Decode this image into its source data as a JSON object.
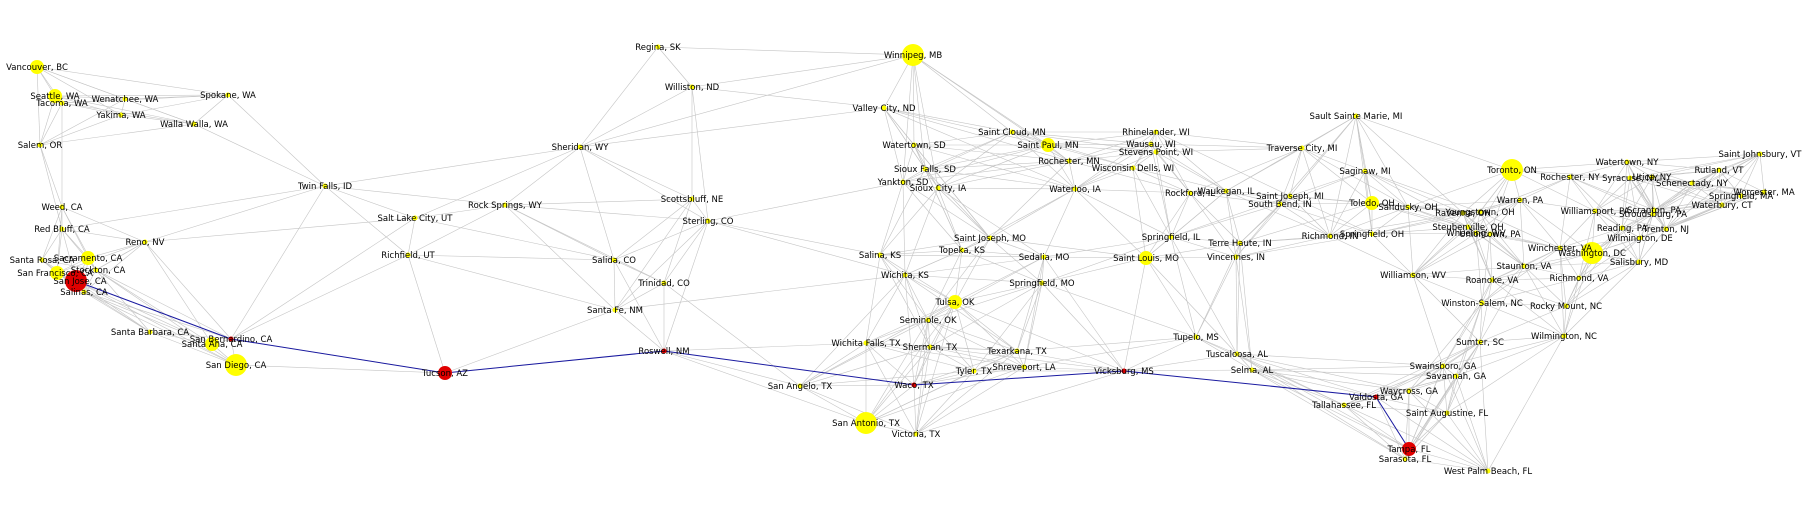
{
  "colors": {
    "node": "#ffff00",
    "path_node": "#e00000",
    "edge": "#c4c4c4",
    "path_edge": "#1a1aa0",
    "label": "#000000"
  },
  "nodes": [
    {
      "id": "vancouver",
      "label": "Vancouver, BC",
      "path": false,
      "size": "m"
    },
    {
      "id": "seattle",
      "label": "Seattle, WA",
      "path": false,
      "size": "m"
    },
    {
      "id": "tacoma",
      "label": "Tacoma, WA",
      "path": false,
      "size": "s"
    },
    {
      "id": "wenatchee",
      "label": "Wenatchee, WA",
      "path": false,
      "size": "s"
    },
    {
      "id": "spokane",
      "label": "Spokane, WA",
      "path": false,
      "size": "s"
    },
    {
      "id": "yakima",
      "label": "Yakima, WA",
      "path": false,
      "size": "s"
    },
    {
      "id": "wallawalla",
      "label": "Walla Walla, WA",
      "path": false,
      "size": "s"
    },
    {
      "id": "salem_or",
      "label": "Salem, OR",
      "path": false,
      "size": "s"
    },
    {
      "id": "twinfalls",
      "label": "Twin Falls, ID",
      "path": false,
      "size": "s"
    },
    {
      "id": "weed",
      "label": "Weed, CA",
      "path": false,
      "size": "s"
    },
    {
      "id": "redbluff",
      "label": "Red Bluff, CA",
      "path": false,
      "size": "s"
    },
    {
      "id": "reno",
      "label": "Reno, NV",
      "path": false,
      "size": "s"
    },
    {
      "id": "santarosa",
      "label": "Santa Rosa, CA",
      "path": false,
      "size": "s"
    },
    {
      "id": "sacramento",
      "label": "Sacramento, CA",
      "path": false,
      "size": "m"
    },
    {
      "id": "sanfrancisco",
      "label": "San Francisco, CA",
      "path": false,
      "size": "m"
    },
    {
      "id": "stockton",
      "label": "Stockton, CA",
      "path": false,
      "size": "s"
    },
    {
      "id": "sanjose",
      "label": "San Jose, CA",
      "path": true,
      "size": "l"
    },
    {
      "id": "salinas",
      "label": "Salinas, CA",
      "path": false,
      "size": "s"
    },
    {
      "id": "santabarbara",
      "label": "Santa Barbara, CA",
      "path": false,
      "size": "s"
    },
    {
      "id": "sanbernardino",
      "label": "San Bernardino, CA",
      "path": true,
      "size": "s"
    },
    {
      "id": "santaana",
      "label": "Santa Ana, CA",
      "path": false,
      "size": "m"
    },
    {
      "id": "sandiego",
      "label": "San Diego, CA",
      "path": false,
      "size": "l"
    },
    {
      "id": "tucson",
      "label": "Tucson, AZ",
      "path": true,
      "size": "m"
    },
    {
      "id": "saltlake",
      "label": "Salt Lake City, UT",
      "path": false,
      "size": "s"
    },
    {
      "id": "rocksprings",
      "label": "Rock Springs, WY",
      "path": false,
      "size": "s"
    },
    {
      "id": "richfield",
      "label": "Richfield, UT",
      "path": false,
      "size": "s"
    },
    {
      "id": "sheridan",
      "label": "Sheridan, WY",
      "path": false,
      "size": "s"
    },
    {
      "id": "regina",
      "label": "Regina, SK",
      "path": false,
      "size": "s"
    },
    {
      "id": "williston",
      "label": "Williston, ND",
      "path": false,
      "size": "s"
    },
    {
      "id": "winnipeg",
      "label": "Winnipeg, MB",
      "path": false,
      "size": "l"
    },
    {
      "id": "valleycity",
      "label": "Valley City, ND",
      "path": false,
      "size": "s"
    },
    {
      "id": "watertown_sd",
      "label": "Watertown, SD",
      "path": false,
      "size": "s"
    },
    {
      "id": "siouxfalls",
      "label": "Sioux Falls, SD",
      "path": false,
      "size": "s"
    },
    {
      "id": "yankton",
      "label": "Yankton, SD",
      "path": false,
      "size": "s"
    },
    {
      "id": "siouxcity",
      "label": "Sioux City, IA",
      "path": false,
      "size": "s"
    },
    {
      "id": "scottsbluff",
      "label": "Scottsbluff, NE",
      "path": false,
      "size": "s"
    },
    {
      "id": "sterling",
      "label": "Sterling, CO",
      "path": false,
      "size": "s"
    },
    {
      "id": "salida",
      "label": "Salida, CO",
      "path": false,
      "size": "s"
    },
    {
      "id": "trinidad",
      "label": "Trinidad, CO",
      "path": false,
      "size": "s"
    },
    {
      "id": "santafe",
      "label": "Santa Fe, NM",
      "path": false,
      "size": "s"
    },
    {
      "id": "roswell",
      "label": "Roswell, NM",
      "path": true,
      "size": "s"
    },
    {
      "id": "saintcloud",
      "label": "Saint Cloud, MN",
      "path": false,
      "size": "s"
    },
    {
      "id": "saintpaul",
      "label": "Saint Paul, MN",
      "path": false,
      "size": "m"
    },
    {
      "id": "rochester_mn",
      "label": "Rochester, MN",
      "path": false,
      "size": "s"
    },
    {
      "id": "waterloo",
      "label": "Waterloo, IA",
      "path": false,
      "size": "s"
    },
    {
      "id": "rhinelander",
      "label": "Rhinelander, WI",
      "path": false,
      "size": "s"
    },
    {
      "id": "wausau",
      "label": "Wausau, WI",
      "path": false,
      "size": "s"
    },
    {
      "id": "stevenspoint",
      "label": "Stevens Point, WI",
      "path": false,
      "size": "s"
    },
    {
      "id": "wisconsindells",
      "label": "Wisconsin Dells, WI",
      "path": false,
      "size": "s"
    },
    {
      "id": "saultsaintemarie",
      "label": "Sault Sainte Marie, MI",
      "path": false,
      "size": "s"
    },
    {
      "id": "traversecity",
      "label": "Traverse City, MI",
      "path": false,
      "size": "s"
    },
    {
      "id": "saginaw",
      "label": "Saginaw, MI",
      "path": false,
      "size": "s"
    },
    {
      "id": "rockford",
      "label": "Rockford, IL",
      "path": false,
      "size": "s"
    },
    {
      "id": "waukegan",
      "label": "Waukegan, IL",
      "path": false,
      "size": "s"
    },
    {
      "id": "saintjoseph_mi",
      "label": "Saint Joseph, MI",
      "path": false,
      "size": "s"
    },
    {
      "id": "southbend",
      "label": "South Bend, IN",
      "path": false,
      "size": "s"
    },
    {
      "id": "toledo",
      "label": "Toledo, OH",
      "path": false,
      "size": "m"
    },
    {
      "id": "sandusky",
      "label": "Sandusky, OH",
      "path": false,
      "size": "s"
    },
    {
      "id": "saintjoseph_mo",
      "label": "Saint Joseph, MO",
      "path": false,
      "size": "s"
    },
    {
      "id": "topeka",
      "label": "Topeka, KS",
      "path": false,
      "size": "s"
    },
    {
      "id": "salina",
      "label": "Salina, KS",
      "path": false,
      "size": "s"
    },
    {
      "id": "wichita",
      "label": "Wichita, KS",
      "path": false,
      "size": "s"
    },
    {
      "id": "sedalia",
      "label": "Sedalia, MO",
      "path": false,
      "size": "s"
    },
    {
      "id": "springfield_il",
      "label": "Springfield, IL",
      "path": false,
      "size": "s"
    },
    {
      "id": "saintlouis",
      "label": "Saint Louis, MO",
      "path": false,
      "size": "m"
    },
    {
      "id": "terrehaute",
      "label": "Terre Haute, IN",
      "path": false,
      "size": "s"
    },
    {
      "id": "vincennes",
      "label": "Vincennes, IN",
      "path": false,
      "size": "s"
    },
    {
      "id": "richmond_in",
      "label": "Richmond, IN",
      "path": false,
      "size": "s"
    },
    {
      "id": "springfield_oh",
      "label": "Springfield, OH",
      "path": false,
      "size": "s"
    },
    {
      "id": "springfield_mo",
      "label": "Springfield, MO",
      "path": false,
      "size": "s"
    },
    {
      "id": "tulsa",
      "label": "Tulsa, OK",
      "path": false,
      "size": "m"
    },
    {
      "id": "seminole",
      "label": "Seminole, OK",
      "path": false,
      "size": "s"
    },
    {
      "id": "wichitafalls",
      "label": "Wichita Falls, TX",
      "path": false,
      "size": "s"
    },
    {
      "id": "sherman",
      "label": "Sherman, TX",
      "path": false,
      "size": "s"
    },
    {
      "id": "texarkana",
      "label": "Texarkana, TX",
      "path": false,
      "size": "s"
    },
    {
      "id": "tyler",
      "label": "Tyler, TX",
      "path": false,
      "size": "s"
    },
    {
      "id": "shreveport",
      "label": "Shreveport, LA",
      "path": false,
      "size": "s"
    },
    {
      "id": "waco",
      "label": "Waco, TX",
      "path": true,
      "size": "s"
    },
    {
      "id": "sanangelo",
      "label": "San Angelo, TX",
      "path": false,
      "size": "s"
    },
    {
      "id": "sanantonio",
      "label": "San Antonio, TX",
      "path": false,
      "size": "l"
    },
    {
      "id": "victoria",
      "label": "Victoria, TX",
      "path": false,
      "size": "s"
    },
    {
      "id": "vicksburg",
      "label": "Vicksburg, MS",
      "path": true,
      "size": "s"
    },
    {
      "id": "tupelo",
      "label": "Tupelo, MS",
      "path": false,
      "size": "s"
    },
    {
      "id": "tuscaloosa",
      "label": "Tuscaloosa, AL",
      "path": false,
      "size": "s"
    },
    {
      "id": "selma",
      "label": "Selma, AL",
      "path": false,
      "size": "s"
    },
    {
      "id": "toronto",
      "label": "Toronto, ON",
      "path": false,
      "size": "l"
    },
    {
      "id": "warren",
      "label": "Warren, PA",
      "path": false,
      "size": "s"
    },
    {
      "id": "rochester_ny",
      "label": "Rochester, NY",
      "path": false,
      "size": "s"
    },
    {
      "id": "syracuse",
      "label": "Syracuse, NY",
      "path": false,
      "size": "s"
    },
    {
      "id": "utica",
      "label": "Utica, NY",
      "path": false,
      "size": "s"
    },
    {
      "id": "watertown_ny",
      "label": "Watertown, NY",
      "path": false,
      "size": "s"
    },
    {
      "id": "schenectady",
      "label": "Schenectady, NY",
      "path": false,
      "size": "s"
    },
    {
      "id": "rutland",
      "label": "Rutland, VT",
      "path": false,
      "size": "s"
    },
    {
      "id": "saintjohnsbury",
      "label": "Saint Johnsbury, VT",
      "path": false,
      "size": "s"
    },
    {
      "id": "worcester",
      "label": "Worcester, MA",
      "path": false,
      "size": "s"
    },
    {
      "id": "springfield_ma",
      "label": "Springfield, MA",
      "path": false,
      "size": "s"
    },
    {
      "id": "waterbury",
      "label": "Waterbury, CT",
      "path": false,
      "size": "s"
    },
    {
      "id": "youngstown",
      "label": "Youngstown, OH",
      "path": false,
      "size": "s"
    },
    {
      "id": "ravenna",
      "label": "Ravenna, OH",
      "path": false,
      "size": "s"
    },
    {
      "id": "steubenville",
      "label": "Steubenville, OH",
      "path": false,
      "size": "s"
    },
    {
      "id": "wheeling",
      "label": "Wheeling, WV",
      "path": false,
      "size": "s"
    },
    {
      "id": "uniontown",
      "label": "Uniontown, PA",
      "path": false,
      "size": "s"
    },
    {
      "id": "williamsport",
      "label": "Williamsport, PA",
      "path": false,
      "size": "s"
    },
    {
      "id": "scranton",
      "label": "Scranton, PA",
      "path": false,
      "size": "s"
    },
    {
      "id": "stroudsburg",
      "label": "Stroudsburg, PA",
      "path": false,
      "size": "s"
    },
    {
      "id": "reading",
      "label": "Reading, PA",
      "path": false,
      "size": "s"
    },
    {
      "id": "trenton",
      "label": "Trenton, NJ",
      "path": false,
      "size": "s"
    },
    {
      "id": "wilmington_de",
      "label": "Wilmington, DE",
      "path": false,
      "size": "s"
    },
    {
      "id": "washington",
      "label": "Washington, DC",
      "path": false,
      "size": "l"
    },
    {
      "id": "winchester",
      "label": "Winchester, VA",
      "path": false,
      "size": "s"
    },
    {
      "id": "staunton",
      "label": "Staunton, VA",
      "path": false,
      "size": "s"
    },
    {
      "id": "salisbury",
      "label": "Salisbury, MD",
      "path": false,
      "size": "s"
    },
    {
      "id": "richmond_va",
      "label": "Richmond, VA",
      "path": false,
      "size": "s"
    },
    {
      "id": "williamson",
      "label": "Williamson, WV",
      "path": false,
      "size": "s"
    },
    {
      "id": "roanoke",
      "label": "Roanoke, VA",
      "path": false,
      "size": "s"
    },
    {
      "id": "winstonsalem",
      "label": "Winston-Salem, NC",
      "path": false,
      "size": "s"
    },
    {
      "id": "rockymount",
      "label": "Rocky Mount, NC",
      "path": false,
      "size": "s"
    },
    {
      "id": "sumter",
      "label": "Sumter, SC",
      "path": false,
      "size": "s"
    },
    {
      "id": "wilmington_nc",
      "label": "Wilmington, NC",
      "path": false,
      "size": "s"
    },
    {
      "id": "swainsboro",
      "label": "Swainsboro, GA",
      "path": false,
      "size": "s"
    },
    {
      "id": "savannah",
      "label": "Savannah, GA",
      "path": false,
      "size": "s"
    },
    {
      "id": "waycross",
      "label": "Waycross, GA",
      "path": false,
      "size": "s"
    },
    {
      "id": "valdosta",
      "label": "Valdosta, GA",
      "path": true,
      "size": "s"
    },
    {
      "id": "tallahassee",
      "label": "Tallahassee, FL",
      "path": false,
      "size": "s"
    },
    {
      "id": "saintaugustine",
      "label": "Saint Augustine, FL",
      "path": false,
      "size": "s"
    },
    {
      "id": "tampa",
      "label": "Tampa, FL",
      "path": true,
      "size": "m"
    },
    {
      "id": "sarasota",
      "label": "Sarasota, FL",
      "path": false,
      "size": "s"
    },
    {
      "id": "westpalmbeach",
      "label": "West Palm Beach, FL",
      "path": false,
      "size": "s"
    }
  ],
  "shortest_path": [
    "sanjose",
    "sanbernardino",
    "tucson",
    "roswell",
    "waco",
    "vicksburg",
    "valdosta",
    "tampa"
  ]
}
